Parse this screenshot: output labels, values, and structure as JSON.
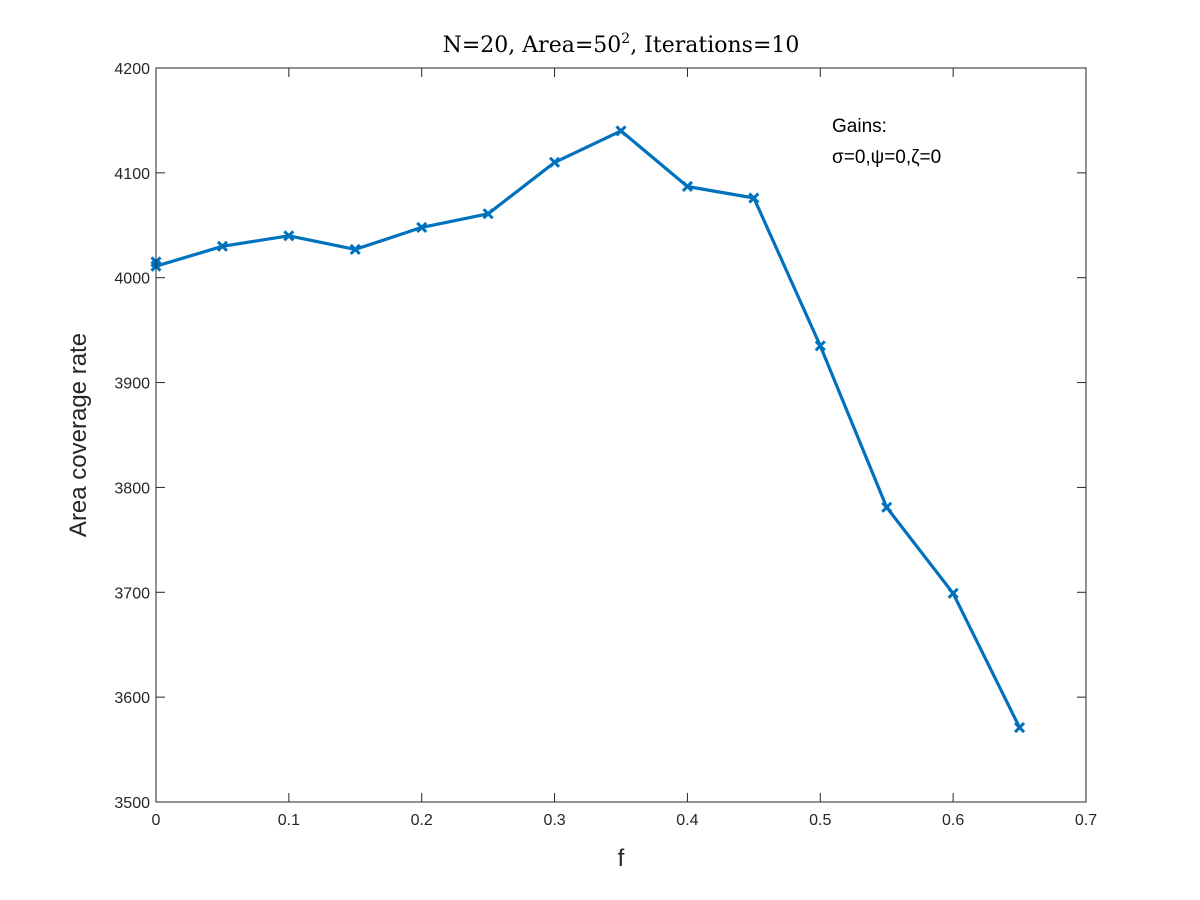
{
  "chart_data": {
    "type": "line",
    "title_parts": {
      "before_sup": "N=20, Area=50",
      "sup": "2",
      "after_sup": ", Iterations=10"
    },
    "xlabel": "f",
    "ylabel": "Area coverage rate",
    "xlim": [
      0,
      0.7
    ],
    "ylim": [
      3500,
      4200
    ],
    "x_ticks": [
      "0",
      "0.1",
      "0.2",
      "0.3",
      "0.4",
      "0.5",
      "0.6",
      "0.7"
    ],
    "y_ticks": [
      "3500",
      "3600",
      "3700",
      "3800",
      "3900",
      "4000",
      "4100",
      "4200"
    ],
    "annotation": {
      "line1": "Gains:",
      "line2": "σ=0,ψ=0,ζ=0"
    },
    "grid": false,
    "series": [
      {
        "marker": "x",
        "color": "#0072BD",
        "x": [
          0,
          0,
          0.05,
          0.1,
          0.15,
          0.2,
          0.25,
          0.3,
          0.35,
          0.4,
          0.45,
          0.5,
          0.55,
          0.6,
          0.65
        ],
        "y": [
          4015,
          4011,
          4030,
          4040,
          4027,
          4048,
          4061,
          4110,
          4140,
          4087,
          4076,
          3935,
          3781,
          3699,
          3571
        ]
      }
    ]
  }
}
